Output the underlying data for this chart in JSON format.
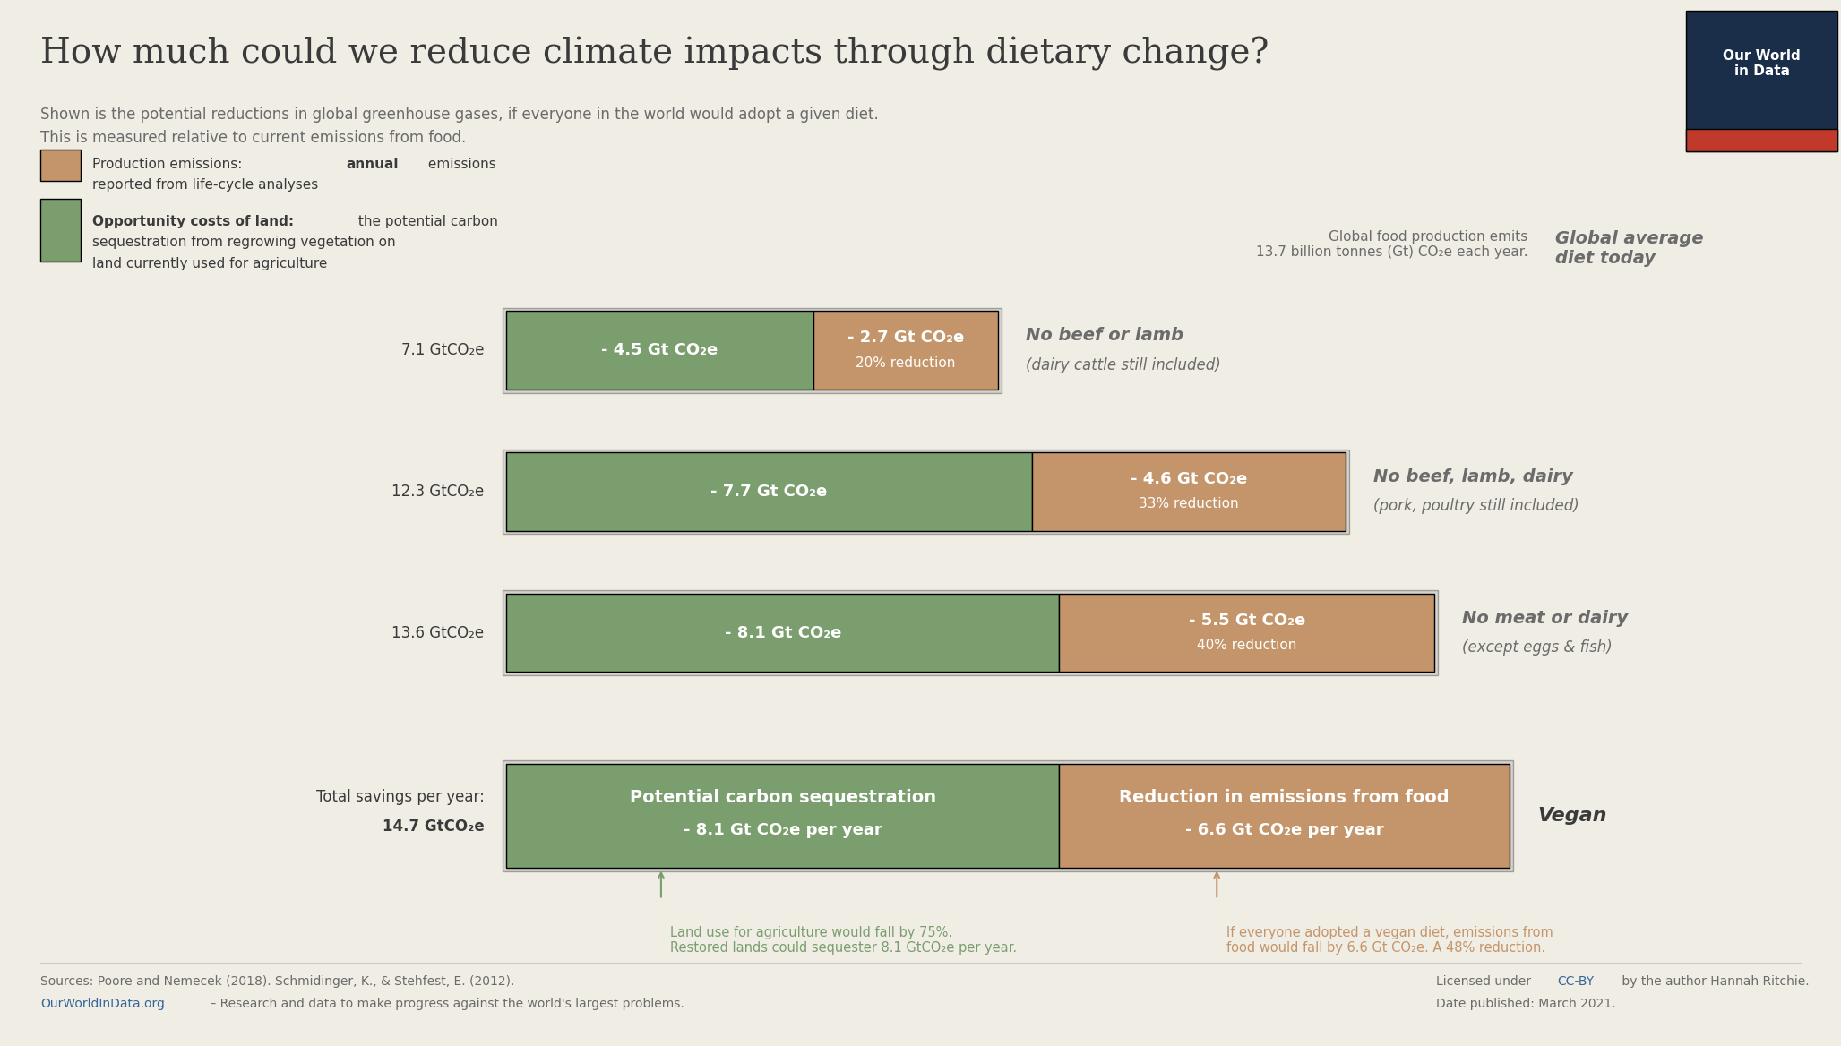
{
  "title": "How much could we reduce climate impacts through dietary change?",
  "subtitle_line1": "Shown is the potential reductions in global greenhouse gases, if everyone in the world would adopt a given diet.",
  "subtitle_line2": "This is measured relative to current emissions from food.",
  "background_color": "#f0ede5",
  "green_color": "#7a9e6e",
  "tan_color": "#c4956a",
  "title_color": "#3a3a3a",
  "text_color": "#6b6b6b",
  "white": "#ffffff",
  "diets": [
    {
      "label": "No beef or lamb",
      "sublabel": "(dairy cattle still included)",
      "total": "7.1 GtCO₂e",
      "green_val": 4.5,
      "tan_val": 2.7,
      "green_label": "- 4.5 Gt CO₂e",
      "tan_label": "- 2.7 Gt CO₂e",
      "tan_sublabel": "20% reduction"
    },
    {
      "label": "No beef, lamb, dairy",
      "sublabel": "(pork, poultry still included)",
      "total": "12.3 GtCO₂e",
      "green_val": 7.7,
      "tan_val": 4.6,
      "green_label": "- 7.7 Gt CO₂e",
      "tan_label": "- 4.6 Gt CO₂e",
      "tan_sublabel": "33% reduction"
    },
    {
      "label": "No meat or dairy",
      "sublabel": "(except eggs & fish)",
      "total": "13.6 GtCO₂e",
      "green_val": 8.1,
      "tan_val": 5.5,
      "green_label": "- 8.1 Gt CO₂e",
      "tan_label": "- 5.5 Gt CO₂e",
      "tan_sublabel": "40% reduction"
    },
    {
      "label": "Vegan",
      "sublabel": "",
      "total_line1": "Total savings per year:",
      "total_line2": "14.7 GtCO₂e",
      "green_val": 8.1,
      "tan_val": 6.6,
      "green_label_line1": "Potential carbon sequestration",
      "green_label_line2": "- 8.1 Gt CO₂e per year",
      "tan_label_line1": "Reduction in emissions from food",
      "tan_label_line2": "- 6.6 Gt CO₂e per year",
      "tan_sublabel": ""
    }
  ],
  "annotation_green_line1": "Land use for agriculture would fall by 75%.",
  "annotation_green_line2": "Restored lands could sequester 8.1 GtCO₂e per year.",
  "annotation_tan_line1": "If everyone adopted a vegan diet, emissions from",
  "annotation_tan_line2": "food would fall by 6.6 Gt CO₂e. A 48% reduction.",
  "owid_bg": "#1a2e4a",
  "owid_red": "#c0392b",
  "bar_max_gt": 14.7,
  "link_color": "#336699"
}
